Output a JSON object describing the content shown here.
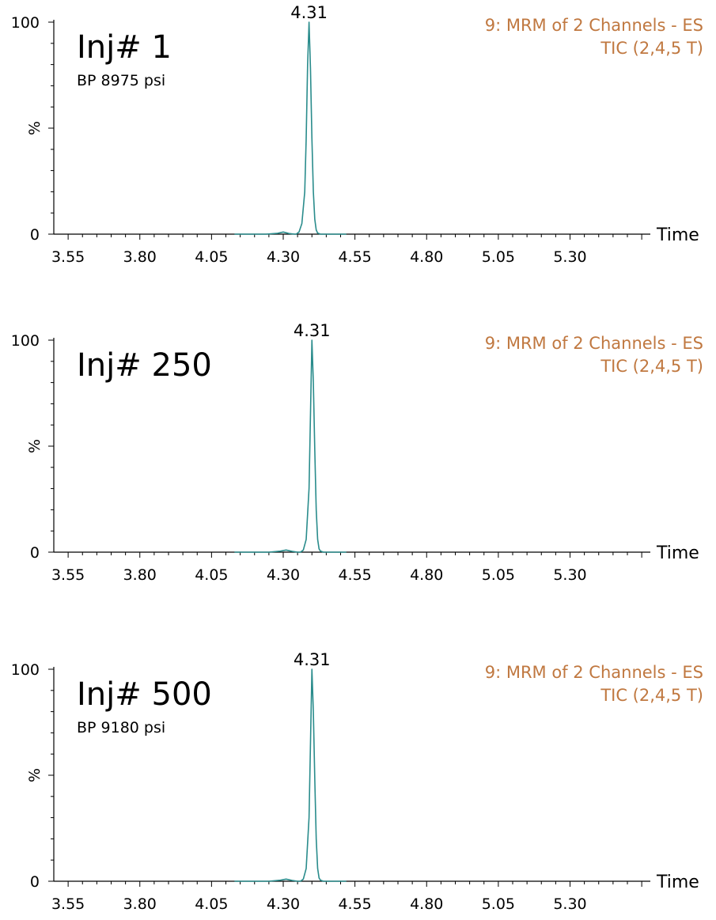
{
  "colors": {
    "trace": "#2a8c8c",
    "annotation": "#c07840",
    "axis": "#000000"
  },
  "chart_data": [
    {
      "type": "line",
      "panel_label": "Inj# 1",
      "pressure_label": "BP 8975 psi",
      "trace_title_line1": "9: MRM of 2 Channels - ES",
      "trace_title_line2": "TIC (2,4,5 T)",
      "ylabel": "%",
      "xlabel": "Time",
      "xlim": [
        3.5,
        5.58
      ],
      "ylim": [
        0,
        100
      ],
      "xticks": [
        "3.55",
        "3.80",
        "4.05",
        "4.30",
        "4.55",
        "4.80",
        "5.05",
        "5.30"
      ],
      "yticks": [
        "0",
        "100"
      ],
      "peak_label": "4.31",
      "x": [
        4.13,
        4.24,
        4.28,
        4.3,
        4.32,
        4.34,
        4.345,
        4.355,
        4.365,
        4.375,
        4.38,
        4.385,
        4.39,
        4.395,
        4.4,
        4.405,
        4.41,
        4.415,
        4.42,
        4.43,
        4.45,
        4.52
      ],
      "y": [
        0,
        0,
        0.4,
        1.0,
        0.3,
        0,
        0,
        1,
        5,
        20,
        45,
        80,
        100,
        78,
        45,
        20,
        7,
        2,
        0.5,
        0,
        0,
        0
      ]
    },
    {
      "type": "line",
      "panel_label": "Inj# 250",
      "pressure_label": "",
      "trace_title_line1": "9: MRM of 2 Channels - ES",
      "trace_title_line2": "TIC (2,4,5 T)",
      "ylabel": "%",
      "xlabel": "Time",
      "xlim": [
        3.5,
        5.58
      ],
      "ylim": [
        0,
        100
      ],
      "xticks": [
        "3.55",
        "3.80",
        "4.05",
        "4.30",
        "4.55",
        "4.80",
        "5.05",
        "5.30"
      ],
      "yticks": [
        "0",
        "100"
      ],
      "peak_label": "4.31",
      "x": [
        4.13,
        4.25,
        4.29,
        4.31,
        4.33,
        4.35,
        4.36,
        4.37,
        4.38,
        4.39,
        4.395,
        4.4,
        4.405,
        4.41,
        4.415,
        4.42,
        4.425,
        4.43,
        4.44,
        4.46,
        4.52
      ],
      "y": [
        0,
        0,
        0.5,
        1.0,
        0.4,
        0,
        0,
        1,
        6,
        30,
        65,
        100,
        80,
        48,
        20,
        6,
        1.5,
        0.5,
        0,
        0,
        0
      ]
    },
    {
      "type": "line",
      "panel_label": "Inj# 500",
      "pressure_label": "BP 9180 psi",
      "trace_title_line1": "9: MRM of 2 Channels - ES",
      "trace_title_line2": "TIC (2,4,5 T)",
      "ylabel": "%",
      "xlabel": "Time",
      "xlim": [
        3.5,
        5.58
      ],
      "ylim": [
        0,
        100
      ],
      "xticks": [
        "3.55",
        "3.80",
        "4.05",
        "4.30",
        "4.55",
        "4.80",
        "5.05",
        "5.30"
      ],
      "yticks": [
        "0",
        "100"
      ],
      "peak_label": "4.31",
      "x": [
        4.13,
        4.25,
        4.29,
        4.31,
        4.33,
        4.35,
        4.36,
        4.37,
        4.38,
        4.39,
        4.395,
        4.4,
        4.405,
        4.41,
        4.415,
        4.42,
        4.425,
        4.43,
        4.44,
        4.46,
        4.52
      ],
      "y": [
        0,
        0,
        0.5,
        1.0,
        0.4,
        0,
        0,
        1,
        6,
        30,
        65,
        100,
        80,
        48,
        20,
        6,
        1.5,
        0.5,
        0,
        0,
        0
      ]
    }
  ]
}
